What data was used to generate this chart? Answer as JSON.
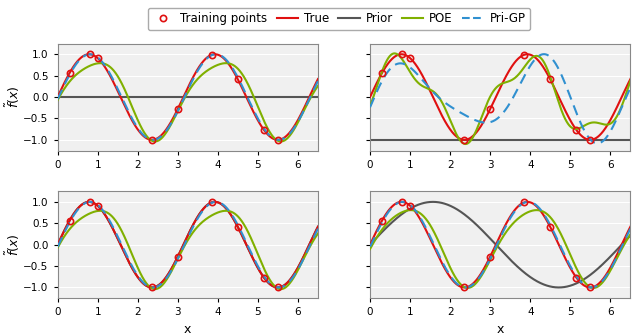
{
  "title": "",
  "xlim": [
    0,
    6.5
  ],
  "ylim": [
    -1.25,
    1.25
  ],
  "yticks": [
    -1.0,
    -0.5,
    0.0,
    0.5,
    1.0
  ],
  "xticks": [
    0,
    1,
    2,
    3,
    4,
    5,
    6
  ],
  "xlabel": "x",
  "ylabel_tilde": "$\\tilde{f}(x)$",
  "true_color": "#e01010",
  "prior_color": "#555555",
  "poe_color": "#80b000",
  "prigp_color": "#3090d0",
  "train_color": "#e01010",
  "background_color": "#f0f0f0",
  "grid_color": "#ffffff",
  "legend_fontsize": 8.5,
  "tick_fontsize": 7.5,
  "axis_label_fontsize": 9
}
